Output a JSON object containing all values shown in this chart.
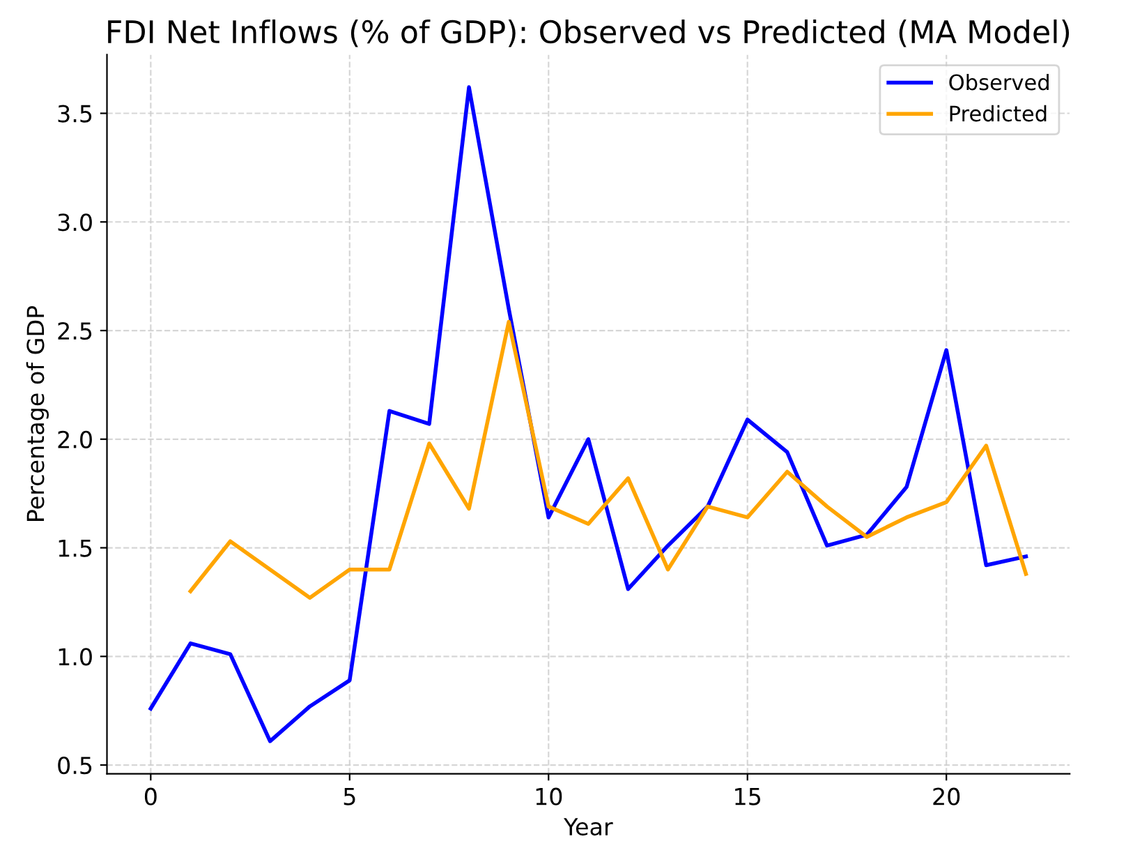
{
  "chart_data": {
    "type": "line",
    "title": "FDI Net Inflows (% of GDP): Observed vs Predicted (MA Model)",
    "xlabel": "Year",
    "ylabel": "Percentage of GDP",
    "series": [
      {
        "name": "Observed",
        "color": "#0000ff",
        "x": [
          0,
          1,
          2,
          3,
          4,
          5,
          6,
          7,
          8,
          9,
          10,
          11,
          12,
          13,
          14,
          15,
          16,
          17,
          18,
          19,
          20,
          21,
          22
        ],
        "values": [
          0.76,
          1.06,
          1.01,
          0.61,
          0.77,
          0.89,
          2.13,
          2.07,
          3.62,
          2.6,
          1.64,
          2.0,
          1.31,
          1.51,
          1.69,
          2.09,
          1.94,
          1.51,
          1.56,
          1.78,
          2.41,
          1.42,
          1.46
        ]
      },
      {
        "name": "Predicted",
        "color": "#ffa500",
        "x": [
          1,
          2,
          3,
          4,
          5,
          6,
          7,
          8,
          9,
          10,
          11,
          12,
          13,
          14,
          15,
          16,
          17,
          18,
          19,
          20,
          21,
          22
        ],
        "values": [
          1.3,
          1.53,
          1.4,
          1.27,
          1.4,
          1.4,
          1.98,
          1.68,
          2.54,
          1.69,
          1.61,
          1.82,
          1.4,
          1.69,
          1.64,
          1.85,
          1.69,
          1.55,
          1.64,
          1.71,
          1.97,
          1.38
        ]
      }
    ],
    "xlim": [
      -1.1,
      23.1
    ],
    "ylim": [
      0.46,
      3.77
    ],
    "xticks": [
      0,
      5,
      10,
      15,
      20
    ],
    "yticks": [
      0.5,
      {
        "value": 1,
        "label": "1.0"
      },
      1.5,
      {
        "value": 2,
        "label": "2.0"
      },
      2.5,
      {
        "value": 3,
        "label": "3.0"
      },
      3.5
    ],
    "grid": true,
    "legend": "top right",
    "marker": "none",
    "line_style": "solid"
  }
}
